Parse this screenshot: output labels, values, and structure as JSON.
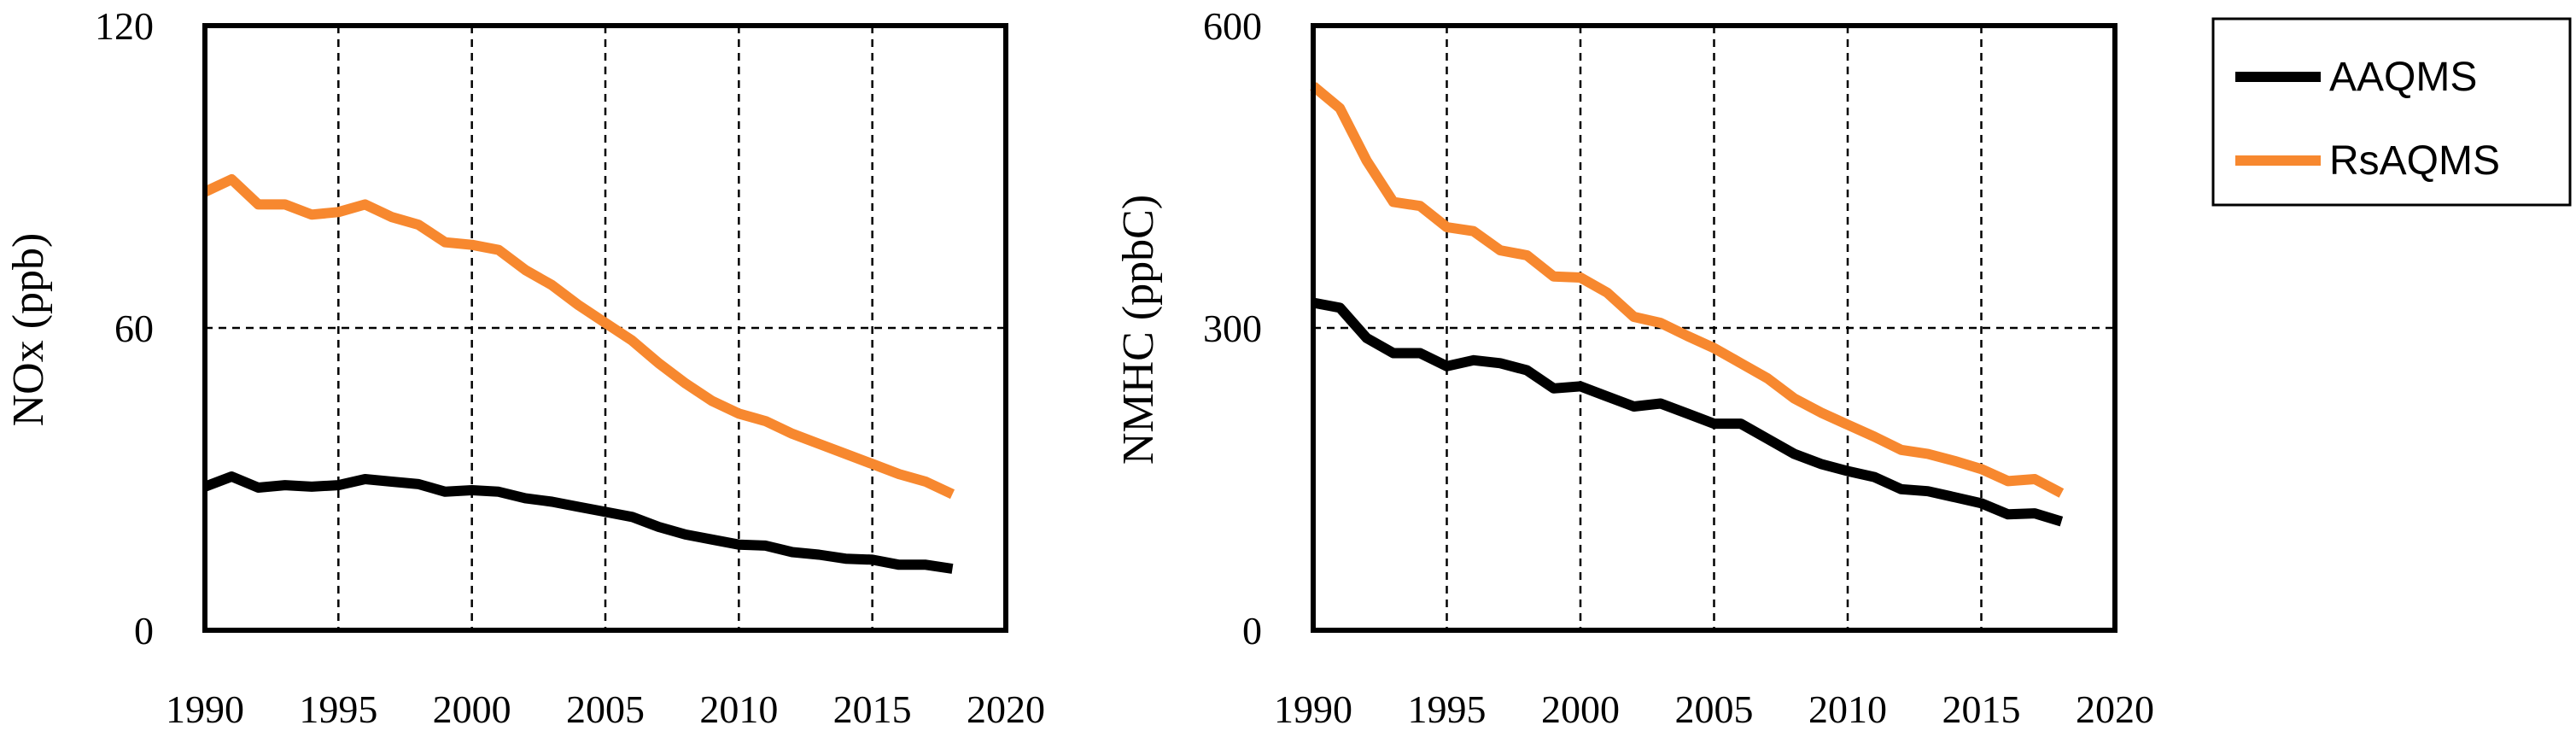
{
  "chart_data": [
    {
      "type": "line",
      "title": "",
      "xlabel": "",
      "ylabel": "NOx (ppb)",
      "xlim": [
        1990,
        2020
      ],
      "ylim": [
        0,
        120
      ],
      "xticks": [
        "1990",
        "1995",
        "2000",
        "2005",
        "2010",
        "2015",
        "2020"
      ],
      "yticks": [
        "0",
        "60",
        "120"
      ],
      "grid": true,
      "x": [
        1990,
        1991,
        1992,
        1993,
        1994,
        1995,
        1996,
        1997,
        1998,
        1999,
        2000,
        2001,
        2002,
        2003,
        2004,
        2005,
        2006,
        2007,
        2008,
        2009,
        2010,
        2011,
        2012,
        2013,
        2014,
        2015,
        2016,
        2017,
        2018
      ],
      "series": [
        {
          "name": "AAQMS",
          "color": "#000000",
          "values": [
            28.5,
            30.5,
            28.3,
            28.8,
            28.5,
            28.8,
            30,
            29.5,
            29,
            27.5,
            27.8,
            27.5,
            26.2,
            25.5,
            24.5,
            23.5,
            22.5,
            20.5,
            19,
            18,
            17,
            16.8,
            15.5,
            15,
            14.2,
            14,
            13,
            13,
            12.2
          ]
        },
        {
          "name": "RsAQMS",
          "color": "#f7882f",
          "values": [
            87,
            89.5,
            84.5,
            84.5,
            82.5,
            83,
            84.5,
            82,
            80.5,
            77,
            76.5,
            75.5,
            71.5,
            68.5,
            64.5,
            61,
            57.5,
            53,
            49,
            45.5,
            43,
            41.5,
            39,
            37,
            35,
            33,
            31,
            29.5,
            27
          ]
        }
      ]
    },
    {
      "type": "line",
      "title": "",
      "xlabel": "",
      "ylabel": "NMHC (ppbC)",
      "xlim": [
        1990,
        2020
      ],
      "ylim": [
        0,
        600
      ],
      "xticks": [
        "1990",
        "1995",
        "2000",
        "2005",
        "2010",
        "2015",
        "2020"
      ],
      "yticks": [
        "0",
        "300",
        "600"
      ],
      "grid": true,
      "x": [
        1990,
        1991,
        1992,
        1993,
        1994,
        1995,
        1996,
        1997,
        1998,
        1999,
        2000,
        2001,
        2002,
        2003,
        2004,
        2005,
        2006,
        2007,
        2008,
        2009,
        2010,
        2011,
        2012,
        2013,
        2014,
        2015,
        2016,
        2017,
        2018
      ],
      "series": [
        {
          "name": "AAQMS",
          "color": "#000000",
          "values": [
            325,
            320,
            290,
            275,
            275,
            262,
            268,
            265,
            258,
            240,
            242,
            232,
            222,
            225,
            215,
            205,
            205,
            190,
            175,
            165,
            158,
            152,
            140,
            138,
            132,
            126,
            115,
            116,
            108
          ]
        },
        {
          "name": "RsAQMS",
          "color": "#f7882f",
          "values": [
            540,
            518,
            466,
            425,
            421,
            400,
            396,
            377,
            372,
            351,
            350,
            335,
            311,
            305,
            292,
            280,
            265,
            250,
            230,
            216,
            204,
            192,
            179,
            175,
            168,
            160,
            148,
            150,
            136
          ]
        }
      ]
    }
  ],
  "legend": {
    "entries": [
      {
        "name": "AAQMS",
        "color": "#000000"
      },
      {
        "name": "RsAQMS",
        "color": "#f7882f"
      }
    ]
  }
}
